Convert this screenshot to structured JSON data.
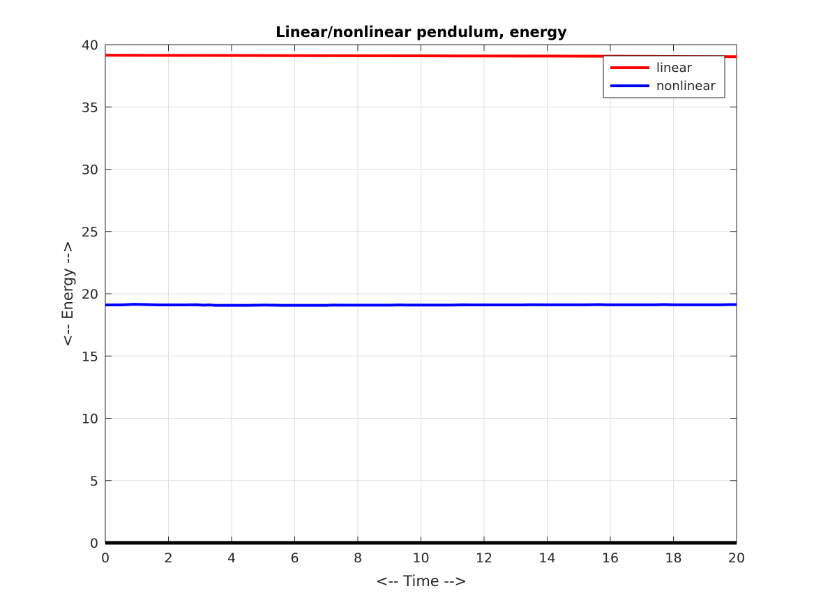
{
  "chart_data": {
    "type": "line",
    "title": "Linear/nonlinear pendulum, energy",
    "xlabel": "<-- Time -->",
    "ylabel": "<-- Energy -->",
    "xlim": [
      0,
      20
    ],
    "ylim": [
      0,
      40
    ],
    "xticks": [
      "0",
      "2",
      "4",
      "6",
      "8",
      "10",
      "12",
      "14",
      "16",
      "18",
      "20"
    ],
    "yticks": [
      "0",
      "5",
      "10",
      "15",
      "20",
      "25",
      "30",
      "35",
      "40"
    ],
    "grid": true,
    "legend_position": "top-right",
    "series": [
      {
        "name": "linear",
        "color": "#ff0000",
        "x": [
          0,
          2,
          4,
          6,
          8,
          10,
          12,
          14,
          16,
          18,
          20
        ],
        "y": [
          39.15,
          39.14,
          39.13,
          39.12,
          39.11,
          39.1,
          39.09,
          39.08,
          39.07,
          39.05,
          39.03
        ]
      },
      {
        "name": "nonlinear",
        "color": "#0000ff",
        "x": [
          0,
          0.5,
          0.9,
          1.3,
          1.7,
          2.5,
          2.9,
          3.1,
          3.3,
          3.5,
          4.5,
          5.0,
          5.3,
          5.6,
          6.5,
          7.0,
          7.2,
          7.6,
          9.0,
          9.3,
          9.6,
          11.0,
          11.3,
          11.6,
          13.2,
          13.5,
          13.8,
          15.3,
          15.6,
          15.9,
          17.4,
          17.7,
          18.0,
          19.5,
          19.8,
          20.0
        ],
        "y": [
          19.1,
          19.1,
          19.15,
          19.13,
          19.1,
          19.1,
          19.12,
          19.08,
          19.1,
          19.07,
          19.07,
          19.09,
          19.08,
          19.07,
          19.07,
          19.07,
          19.09,
          19.08,
          19.08,
          19.1,
          19.09,
          19.09,
          19.11,
          19.1,
          19.1,
          19.12,
          19.11,
          19.11,
          19.13,
          19.11,
          19.11,
          19.13,
          19.11,
          19.11,
          19.13,
          19.13
        ]
      },
      {
        "name": "",
        "color": "#000000",
        "x": [
          0,
          20
        ],
        "y": [
          0,
          0
        ]
      }
    ]
  }
}
